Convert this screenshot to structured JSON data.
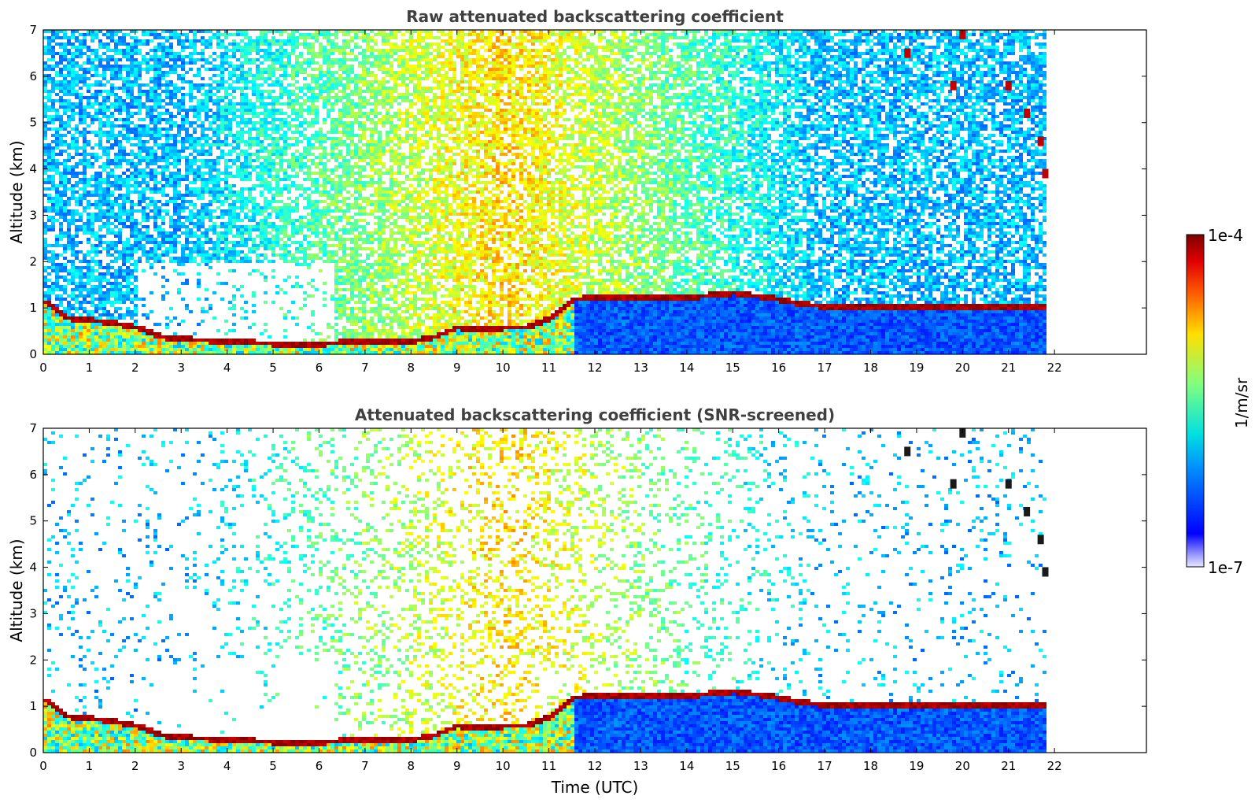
{
  "figure": {
    "colorbar": {
      "max_label": "1e-4",
      "min_label": "1e-7",
      "unit_label": "1/m/sr",
      "vmin": 1e-07,
      "vmax": 0.0001,
      "scale": "log",
      "colormap": "jet"
    }
  },
  "chart_data": [
    {
      "type": "heatmap",
      "title": "Raw attenuated backscattering coefficient",
      "xlabel": "",
      "ylabel": "Altitude (km)",
      "x_unit": "Time (UTC) hours",
      "xlim": [
        0,
        24
      ],
      "ylim": [
        0,
        7
      ],
      "xticks": [
        "0",
        "1",
        "2",
        "3",
        "4",
        "5",
        "6",
        "7",
        "8",
        "9",
        "10",
        "11",
        "12",
        "13",
        "14",
        "15",
        "16",
        "17",
        "18",
        "19",
        "20",
        "21",
        "22"
      ],
      "yticks": [
        "0",
        "1",
        "2",
        "3",
        "4",
        "5",
        "6",
        "7"
      ],
      "data_extent_hours": 21.8,
      "boundary_layer_top_km": {
        "x": [
          0,
          0.5,
          1,
          1.5,
          2,
          2.5,
          3,
          4,
          5,
          6,
          7,
          8,
          8.5,
          9,
          9.5,
          10,
          10.5,
          11,
          11.5,
          12,
          13,
          14,
          15,
          16,
          16.5,
          17
        ],
        "y": [
          1.15,
          0.8,
          0.75,
          0.7,
          0.6,
          0.4,
          0.35,
          0.3,
          0.25,
          0.25,
          0.3,
          0.3,
          0.4,
          0.6,
          0.55,
          0.6,
          0.6,
          0.8,
          1.2,
          1.25,
          1.25,
          1.25,
          1.35,
          1.2,
          1.1,
          1.05
        ]
      },
      "clouds": [
        {
          "x": 20.0,
          "y": 6.9
        },
        {
          "x": 21.0,
          "y": 5.8
        },
        {
          "x": 21.4,
          "y": 5.2
        },
        {
          "x": 21.7,
          "y": 4.6
        },
        {
          "x": 21.8,
          "y": 3.9
        },
        {
          "x": 18.8,
          "y": 6.5
        },
        {
          "x": 19.8,
          "y": 5.8
        }
      ]
    },
    {
      "type": "heatmap",
      "title": "Attenuated backscattering coefficient (SNR-screened)",
      "xlabel": "Time (UTC)",
      "ylabel": "Altitude (km)",
      "xlim": [
        0,
        24
      ],
      "ylim": [
        0,
        7
      ],
      "xticks": [
        "0",
        "1",
        "2",
        "3",
        "4",
        "5",
        "6",
        "7",
        "8",
        "9",
        "10",
        "11",
        "12",
        "13",
        "14",
        "15",
        "16",
        "17",
        "18",
        "19",
        "20",
        "21",
        "22"
      ],
      "yticks": [
        "0",
        "1",
        "2",
        "3",
        "4",
        "5",
        "6",
        "7"
      ],
      "data_extent_hours": 21.8
    }
  ]
}
